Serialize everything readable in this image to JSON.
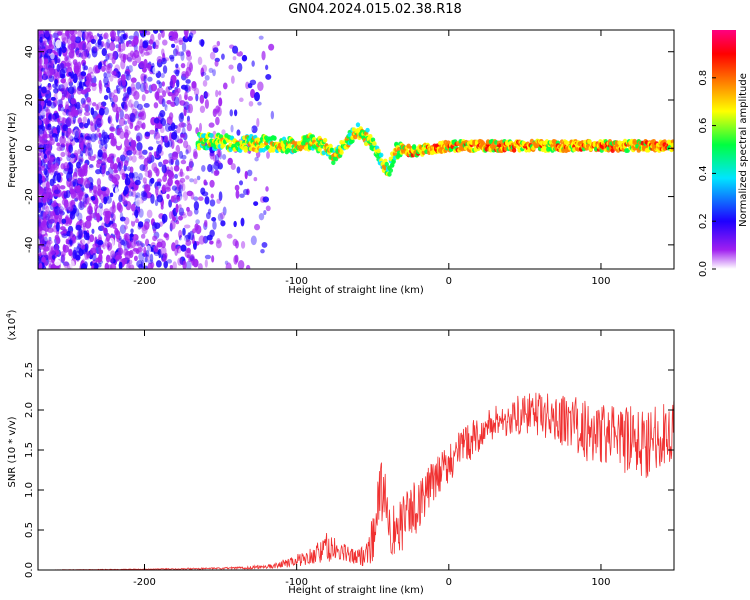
{
  "title": "GN04.2024.015.02.38.R18",
  "chart_data": [
    {
      "type": "heatmap",
      "xlabel": "Height of straight line (km)",
      "ylabel": "Frequency (Hz)",
      "xlim": [
        -270,
        148
      ],
      "ylim": [
        -50,
        49
      ],
      "x_ticks": [
        -200,
        -100,
        0,
        100
      ],
      "y_ticks": [
        -40,
        -20,
        0,
        20,
        40
      ],
      "ridge": [
        {
          "x": -160,
          "y": 3
        },
        {
          "x": -140,
          "y": 2
        },
        {
          "x": -120,
          "y": 2
        },
        {
          "x": -100,
          "y": 1
        },
        {
          "x": -90,
          "y": 3
        },
        {
          "x": -80,
          "y": 0
        },
        {
          "x": -75,
          "y": -4
        },
        {
          "x": -68,
          "y": 2
        },
        {
          "x": -60,
          "y": 7
        },
        {
          "x": -52,
          "y": 4
        },
        {
          "x": -45,
          "y": -4
        },
        {
          "x": -40,
          "y": -10
        },
        {
          "x": -35,
          "y": -1
        },
        {
          "x": -20,
          "y": -1
        },
        {
          "x": 0,
          "y": 1
        },
        {
          "x": 50,
          "y": 1
        },
        {
          "x": 100,
          "y": 1
        },
        {
          "x": 148,
          "y": 1
        }
      ],
      "colorbar": {
        "label": "Normalized spectral amplitude",
        "range": [
          0,
          1
        ],
        "ticks": [
          "0.0",
          "0.2",
          "0.4",
          "0.6",
          "0.8"
        ],
        "tick_values": [
          0,
          0.2,
          0.4,
          0.6,
          0.8
        ],
        "colors": [
          "#ffffff",
          "#a020f0",
          "#1e00ff",
          "#00e5ff",
          "#00ff40",
          "#ffff00",
          "#ff8000",
          "#ff0000",
          "#ff0080"
        ]
      }
    },
    {
      "type": "line",
      "xlabel": "Height of straight line (km)",
      "ylabel": "SNR (10 * v/v)",
      "y_multiplier": "(x10",
      "y_multiplier_exp": "4",
      "y_multiplier_close": ")",
      "xlim": [
        -270,
        148
      ],
      "ylim": [
        0,
        3.0
      ],
      "x_ticks": [
        -200,
        -100,
        0,
        100
      ],
      "y_ticks": [
        0.0,
        0.5,
        1.0,
        1.5,
        2.0,
        2.5
      ],
      "series": [
        {
          "color": "#f03030",
          "x": [
            -270,
            -200,
            -150,
            -130,
            -115,
            -100,
            -90,
            -85,
            -80,
            -70,
            -60,
            -55,
            -50,
            -45,
            -42,
            -38,
            -35,
            -30,
            -25,
            -20,
            -10,
            0,
            10,
            20,
            30,
            40,
            50,
            60,
            70,
            80,
            90,
            100,
            110,
            120,
            130,
            140,
            148
          ],
          "y": [
            0.0,
            0.01,
            0.02,
            0.03,
            0.05,
            0.12,
            0.18,
            0.22,
            0.28,
            0.22,
            0.15,
            0.2,
            0.4,
            0.95,
            1.0,
            0.55,
            0.4,
            0.6,
            0.7,
            0.85,
            1.1,
            1.35,
            1.55,
            1.7,
            1.85,
            1.9,
            1.95,
            1.95,
            1.9,
            1.85,
            1.75,
            1.7,
            1.65,
            1.6,
            1.6,
            1.7,
            1.75
          ],
          "noise": [
            0.0,
            0.005,
            0.01,
            0.02,
            0.03,
            0.08,
            0.1,
            0.15,
            0.2,
            0.12,
            0.1,
            0.15,
            0.3,
            0.4,
            0.35,
            0.35,
            0.35,
            0.35,
            0.35,
            0.35,
            0.25,
            0.25,
            0.25,
            0.22,
            0.22,
            0.25,
            0.25,
            0.28,
            0.3,
            0.35,
            0.4,
            0.4,
            0.4,
            0.45,
            0.45,
            0.4,
            0.4
          ]
        }
      ]
    }
  ]
}
